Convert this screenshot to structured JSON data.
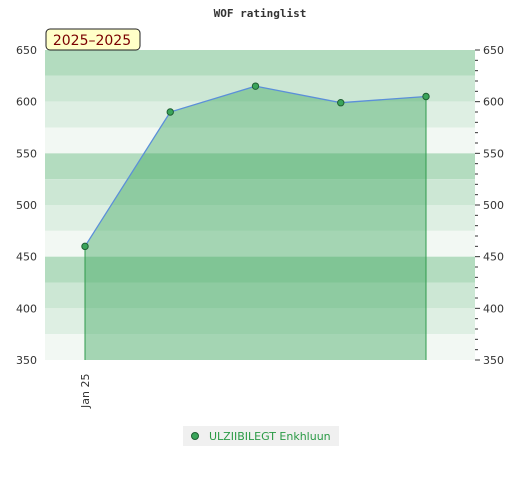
{
  "chart_data": {
    "type": "area",
    "title": "WOF ratinglist",
    "period_badge": "2025–2025",
    "ylim": [
      350,
      650
    ],
    "yticks": [
      350,
      400,
      450,
      500,
      550,
      600,
      650
    ],
    "x_tick_labels": [
      "Jan 25"
    ],
    "series": [
      {
        "name": "ULZIIBILEGT Enkhluun",
        "values": [
          460,
          590,
          615,
          599,
          605
        ]
      }
    ],
    "colors": {
      "line": "#5b8fd9",
      "area": "#3aa55a",
      "band_dark": "#b3dcbf",
      "band_light": "#f2f8f3"
    },
    "legend_position": "bottom-center"
  }
}
